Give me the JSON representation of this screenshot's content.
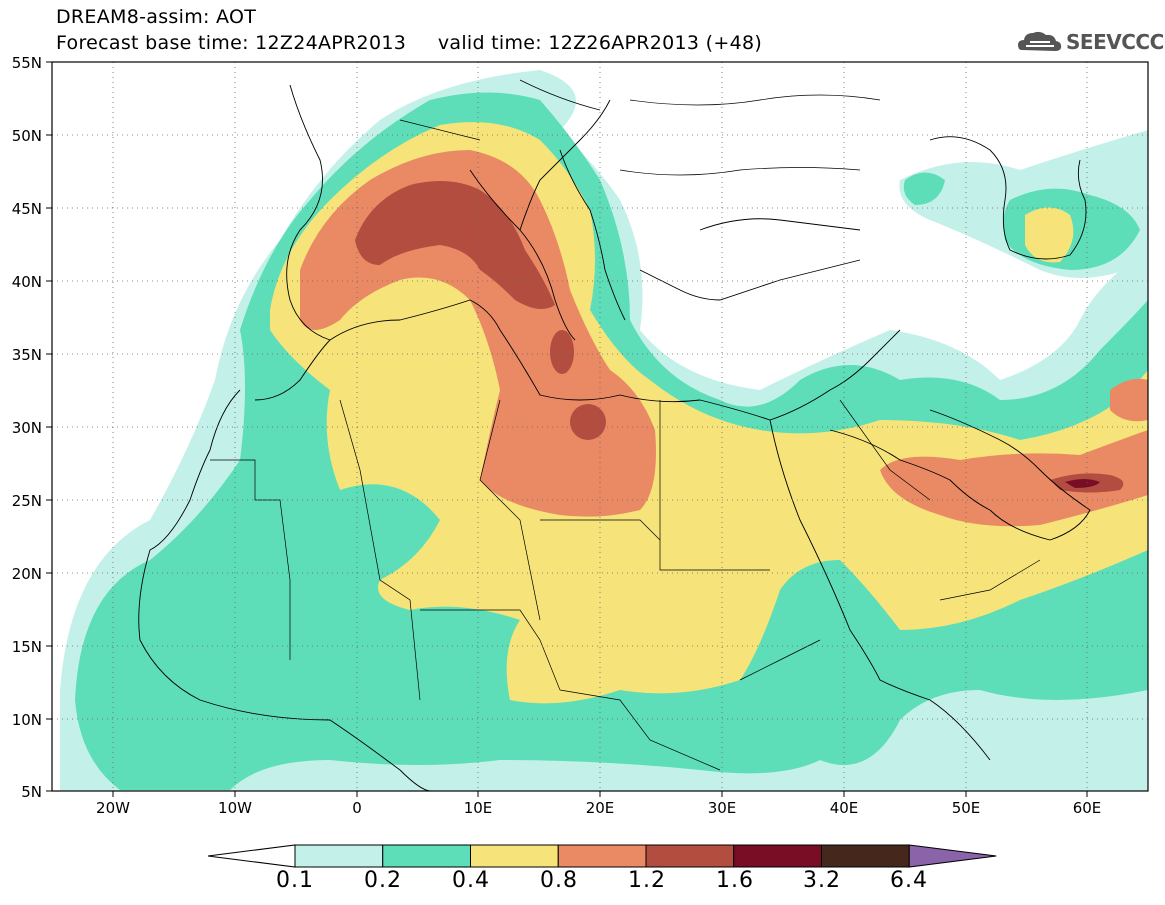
{
  "title": {
    "line1": "DREAM8-assim: AOT",
    "line2_left": "Forecast base time: 12Z24APR2013",
    "line2_right": "valid time: 12Z26APR2013 (+48)"
  },
  "logo": {
    "text": "SEEVCCC",
    "icon": "cloud-icon"
  },
  "map": {
    "lat_ticks": [
      "55N",
      "50N",
      "45N",
      "40N",
      "35N",
      "30N",
      "25N",
      "20N",
      "15N",
      "10N",
      "5N"
    ],
    "lon_ticks": [
      "20W",
      "10W",
      "0",
      "10E",
      "20E",
      "30E",
      "40E",
      "50E",
      "60E"
    ],
    "lat_range": [
      5,
      55
    ],
    "lon_range": [
      -25,
      65
    ],
    "grid": "dotted"
  },
  "colorbar": {
    "levels": [
      "0.1",
      "0.2",
      "0.4",
      "0.8",
      "1.2",
      "1.6",
      "3.2",
      "6.4"
    ],
    "colors": [
      "#c3f1ea",
      "#5ddeb8",
      "#f6e47a",
      "#e98a65",
      "#b24d3f",
      "#7a0d26",
      "#45271b",
      "#8b63a9"
    ],
    "lower_extend_color": "#ffffff",
    "upper_extend_color": "#8b63a9"
  },
  "colors": {
    "c01": "#c3f1ea",
    "c02": "#5ddeb8",
    "c04": "#f6e47a",
    "c08": "#e98a65",
    "c12": "#b24d3f",
    "c16": "#7a0d26"
  }
}
